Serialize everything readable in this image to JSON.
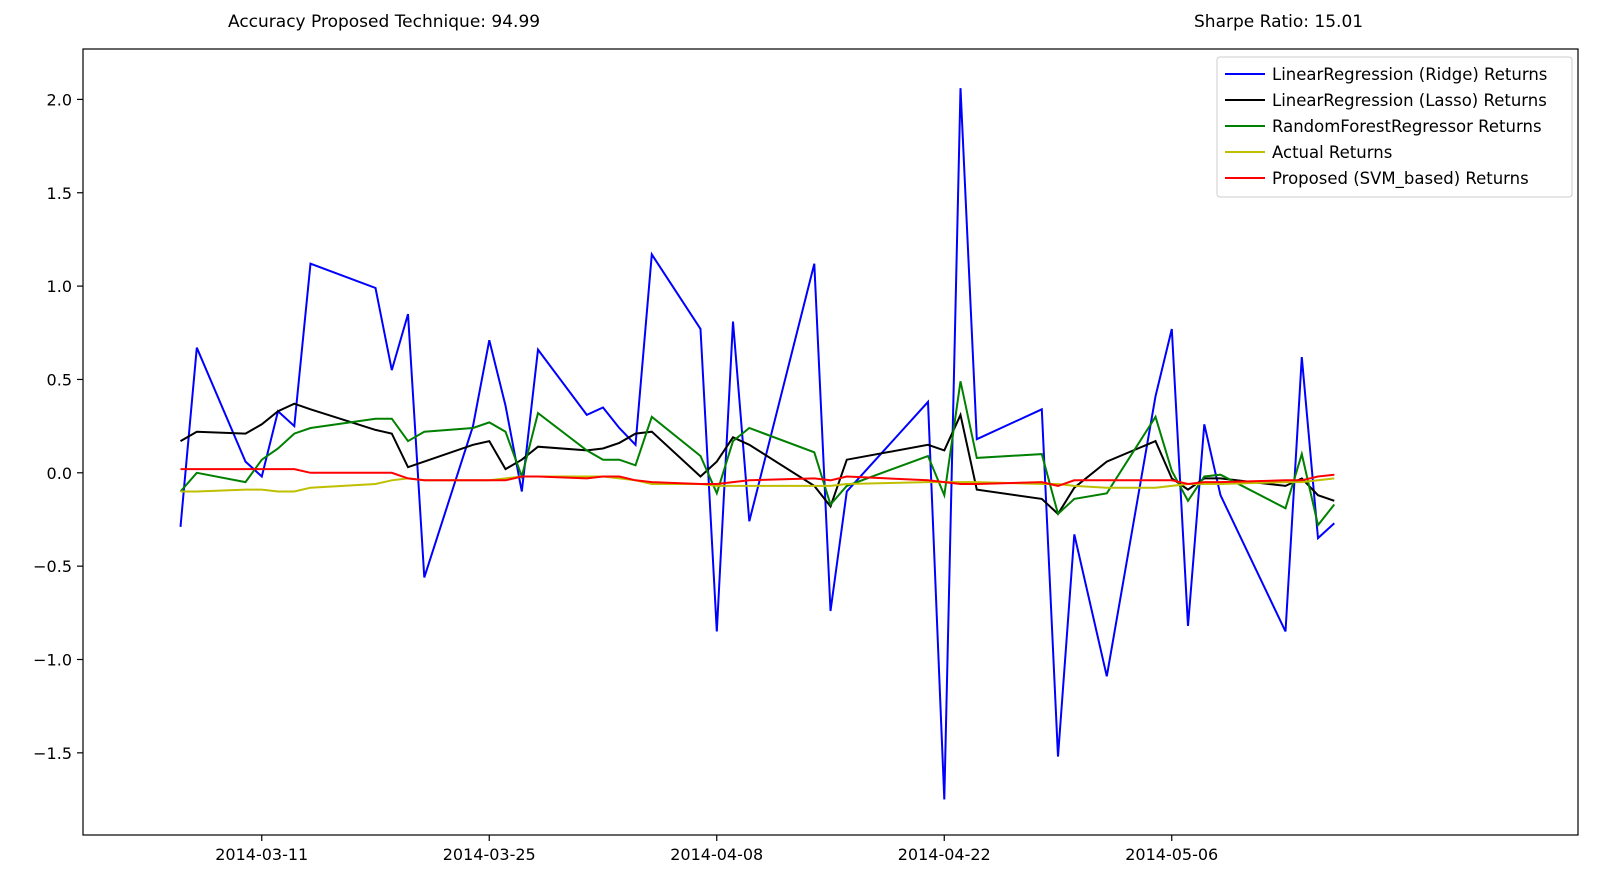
{
  "header": {
    "accuracy_label": "Accuracy Proposed Technique: 94.99",
    "sharpe_label": "Sharpe Ratio: 15.01"
  },
  "chart_data": {
    "type": "line",
    "title": "",
    "xlabel": "",
    "ylabel": "",
    "x_tick_labels": [
      "2014-03-11",
      "2014-03-25",
      "2014-04-08",
      "2014-04-22",
      "2014-05-06"
    ],
    "x_ticks": [
      "2014-03-11",
      "2014-03-25",
      "2014-04-08",
      "2014-04-22",
      "2014-05-06"
    ],
    "y_ticks": [
      -1.5,
      -1.0,
      -0.5,
      0.0,
      0.5,
      1.0,
      1.5,
      2.0
    ],
    "y_tick_labels": [
      "−1.5",
      "−1.0",
      "−0.5",
      "0.0",
      "0.5",
      "1.0",
      "1.5",
      "2.0"
    ],
    "xlim": [
      "2014-02-28",
      "2014-05-31"
    ],
    "ylim": [
      -1.94,
      2.27
    ],
    "grid": false,
    "legend_position": "top-right",
    "x": [
      "2014-03-06",
      "2014-03-07",
      "2014-03-10",
      "2014-03-11",
      "2014-03-12",
      "2014-03-13",
      "2014-03-14",
      "2014-03-18",
      "2014-03-19",
      "2014-03-20",
      "2014-03-21",
      "2014-03-24",
      "2014-03-25",
      "2014-03-26",
      "2014-03-27",
      "2014-03-28",
      "2014-03-31",
      "2014-04-01",
      "2014-04-02",
      "2014-04-03",
      "2014-04-04",
      "2014-04-07",
      "2014-04-08",
      "2014-04-09",
      "2014-04-10",
      "2014-04-14",
      "2014-04-15",
      "2014-04-16",
      "2014-04-21",
      "2014-04-22",
      "2014-04-23",
      "2014-04-24",
      "2014-04-28",
      "2014-04-29",
      "2014-04-30",
      "2014-05-02",
      "2014-05-05",
      "2014-05-06",
      "2014-05-07",
      "2014-05-08",
      "2014-05-09",
      "2014-05-13",
      "2014-05-14",
      "2014-05-15",
      "2014-05-16"
    ],
    "series": [
      {
        "name": "LinearRegression (Ridge) Returns",
        "color": "#0000ff",
        "values": [
          -0.29,
          0.67,
          0.06,
          -0.02,
          0.33,
          0.25,
          1.12,
          0.99,
          0.55,
          0.85,
          -0.56,
          0.25,
          0.71,
          0.36,
          -0.1,
          0.66,
          0.31,
          0.35,
          0.24,
          0.15,
          1.17,
          0.77,
          -0.85,
          0.81,
          -0.26,
          1.12,
          -0.74,
          -0.1,
          0.38,
          -1.75,
          2.06,
          0.18,
          0.34,
          -1.52,
          -0.33,
          -1.09,
          0.41,
          0.77,
          -0.82,
          0.26,
          -0.12,
          -0.85,
          0.62,
          -0.35,
          -0.27
        ]
      },
      {
        "name": "LinearRegression (Lasso) Returns",
        "color": "#000000",
        "values": [
          0.17,
          0.22,
          0.21,
          0.26,
          0.33,
          0.37,
          0.34,
          0.23,
          0.21,
          0.03,
          0.06,
          0.15,
          0.17,
          0.02,
          0.07,
          0.14,
          0.12,
          0.13,
          0.16,
          0.21,
          0.22,
          -0.02,
          0.06,
          0.19,
          0.15,
          -0.07,
          -0.18,
          0.07,
          0.15,
          0.12,
          0.31,
          -0.09,
          -0.14,
          -0.22,
          -0.08,
          0.06,
          0.17,
          -0.03,
          -0.09,
          -0.03,
          -0.03,
          -0.07,
          -0.03,
          -0.12,
          -0.15
        ]
      },
      {
        "name": "RandomForestRegressor Returns",
        "color": "#008000",
        "values": [
          -0.1,
          0.0,
          -0.05,
          0.07,
          0.13,
          0.21,
          0.24,
          0.29,
          0.29,
          0.17,
          0.22,
          0.24,
          0.27,
          0.22,
          -0.02,
          0.32,
          0.12,
          0.07,
          0.07,
          0.04,
          0.3,
          0.09,
          -0.11,
          0.17,
          0.24,
          0.11,
          -0.17,
          -0.07,
          0.09,
          -0.12,
          0.49,
          0.08,
          0.1,
          -0.22,
          -0.14,
          -0.11,
          0.3,
          0.01,
          -0.15,
          -0.02,
          -0.01,
          -0.19,
          0.1,
          -0.28,
          -0.17
        ]
      },
      {
        "name": "Actual Returns",
        "color": "#bfbf00",
        "values": [
          -0.1,
          -0.1,
          -0.09,
          -0.09,
          -0.1,
          -0.1,
          -0.08,
          -0.06,
          -0.04,
          -0.03,
          -0.04,
          -0.04,
          -0.04,
          -0.03,
          -0.02,
          -0.02,
          -0.02,
          -0.02,
          -0.03,
          -0.04,
          -0.06,
          -0.06,
          -0.07,
          -0.07,
          -0.07,
          -0.07,
          -0.07,
          -0.06,
          -0.05,
          -0.05,
          -0.05,
          -0.05,
          -0.06,
          -0.06,
          -0.07,
          -0.08,
          -0.08,
          -0.07,
          -0.06,
          -0.06,
          -0.06,
          -0.05,
          -0.05,
          -0.04,
          -0.03
        ]
      },
      {
        "name": "Proposed (SVM_based) Returns",
        "color": "#ff0000",
        "values": [
          0.02,
          0.02,
          0.02,
          0.02,
          0.02,
          0.02,
          0.0,
          0.0,
          0.0,
          -0.03,
          -0.04,
          -0.04,
          -0.04,
          -0.04,
          -0.02,
          -0.02,
          -0.03,
          -0.02,
          -0.02,
          -0.04,
          -0.05,
          -0.06,
          -0.06,
          -0.05,
          -0.04,
          -0.03,
          -0.04,
          -0.02,
          -0.04,
          -0.05,
          -0.06,
          -0.06,
          -0.05,
          -0.07,
          -0.04,
          -0.04,
          -0.04,
          -0.04,
          -0.06,
          -0.05,
          -0.05,
          -0.04,
          -0.04,
          -0.02,
          -0.01
        ]
      }
    ]
  }
}
